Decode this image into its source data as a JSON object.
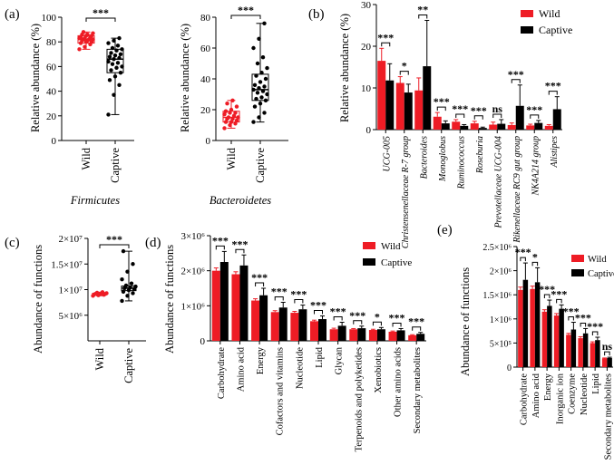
{
  "colors": {
    "wild": "#ee1c25",
    "captive": "#000000",
    "axis": "#000000"
  },
  "chart_data": [
    {
      "panel": "(a)",
      "type": "box",
      "title": "Firmicutes",
      "ylabel": "Relative abundance (%)",
      "categories": [
        "Wild",
        "Captive"
      ],
      "ylim": [
        0,
        100
      ],
      "yticks": [
        "0",
        "20",
        "40",
        "60",
        "80",
        "100"
      ],
      "groups": [
        {
          "name": "Wild",
          "min": 74,
          "q1": 79,
          "median": 82,
          "q3": 85,
          "max": 88,
          "points": [
            74,
            76,
            78,
            79,
            80,
            80,
            81,
            81,
            82,
            82,
            82,
            83,
            83,
            84,
            84,
            85,
            85,
            86,
            86,
            87,
            88
          ]
        },
        {
          "name": "Captive",
          "min": 21,
          "q1": 55,
          "median": 66,
          "q3": 74,
          "max": 83,
          "points": [
            21,
            37,
            45,
            49,
            52,
            55,
            57,
            59,
            60,
            62,
            63,
            64,
            66,
            67,
            68,
            69,
            70,
            71,
            73,
            74,
            75,
            77,
            79,
            81,
            83
          ]
        }
      ],
      "significance": "***"
    },
    {
      "panel": "",
      "type": "box",
      "title": "Bacteroidetes",
      "ylabel": "Relative abundance (%)",
      "categories": [
        "Wild",
        "Captive"
      ],
      "ylim": [
        0,
        80
      ],
      "yticks": [
        "0",
        "20",
        "40",
        "60",
        "80"
      ],
      "groups": [
        {
          "name": "Wild",
          "min": 8,
          "q1": 12,
          "median": 15,
          "q3": 19,
          "max": 26,
          "points": [
            8,
            10,
            11,
            12,
            12,
            13,
            14,
            14,
            15,
            15,
            16,
            17,
            18,
            18,
            19,
            20,
            22,
            24,
            26
          ]
        },
        {
          "name": "Captive",
          "min": 12,
          "q1": 26,
          "median": 33,
          "q3": 43,
          "max": 76,
          "points": [
            12,
            15,
            18,
            22,
            24,
            26,
            27,
            28,
            30,
            31,
            32,
            33,
            34,
            35,
            36,
            38,
            40,
            42,
            44,
            47,
            50,
            54,
            60,
            66,
            76
          ]
        }
      ],
      "significance": "***"
    },
    {
      "panel": "(b)",
      "type": "bar",
      "ylabel": "Relative abundance (%)",
      "ylim": [
        0,
        30
      ],
      "yticks": [
        "0",
        "10",
        "20",
        "30"
      ],
      "legend": [
        "Wild",
        "Captive"
      ],
      "categories": [
        "UCG-005",
        "Christensenellaceae R-7 group",
        "Bacteroides",
        "Monoglobus",
        "Ruminococcus",
        "Roseburia",
        "Prevotellaceae UCG-004",
        "Rikenellaceae RC9 gut group",
        "NK4A214 group",
        "Alistipes"
      ],
      "series": [
        {
          "name": "Wild",
          "values": [
            16.5,
            11.2,
            9.4,
            3.1,
            1.9,
            1.5,
            1.2,
            1.1,
            1.0,
            0.9
          ],
          "errors": [
            3,
            1.5,
            3,
            1,
            0.5,
            0.5,
            0.6,
            0.5,
            0.3,
            0.3
          ]
        },
        {
          "name": "Captive",
          "values": [
            11.8,
            8.9,
            15.2,
            1.5,
            0.9,
            0.4,
            1.4,
            5.7,
            1.6,
            4.9
          ],
          "errors": [
            4,
            2,
            11,
            0.6,
            0.3,
            0.2,
            1,
            5,
            0.6,
            3
          ]
        }
      ],
      "significance": [
        "***",
        "*",
        "**",
        "***",
        "***",
        "***",
        "ns",
        "***",
        "***",
        "***"
      ]
    },
    {
      "panel": "(c)",
      "type": "box",
      "ylabel": "Abundance of functions",
      "categories": [
        "Wild",
        "Captive"
      ],
      "ylim": [
        0,
        20000000
      ],
      "yticks": [
        "5×10⁶",
        "1×10⁷",
        "1.5×10⁷",
        "2×10⁷"
      ],
      "groups": [
        {
          "name": "Wild",
          "min": 8800000,
          "q1": 9000000,
          "median": 9150000,
          "q3": 9300000,
          "max": 9500000,
          "points": [
            8800000,
            8900000,
            9000000,
            9050000,
            9100000,
            9150000,
            9200000,
            9250000,
            9300000,
            9400000,
            9500000
          ]
        },
        {
          "name": "Captive",
          "min": 7800000,
          "q1": 9800000,
          "median": 10300000,
          "q3": 10700000,
          "max": 17500000,
          "points": [
            7800000,
            8800000,
            9300000,
            9600000,
            9900000,
            10100000,
            10300000,
            10400000,
            10600000,
            10800000,
            11200000,
            12000000,
            13500000,
            15000000,
            17500000
          ]
        }
      ],
      "significance": "***"
    },
    {
      "panel": "(d)",
      "type": "bar",
      "ylabel": "Abundance of functions",
      "ylim": [
        0,
        3000000
      ],
      "yticks": [
        "0",
        "1×10⁶",
        "2×10⁶",
        "3×10⁶"
      ],
      "legend": [
        "Wild",
        "Captive"
      ],
      "categories": [
        "Carbohydrate",
        "Amino acid",
        "Energy",
        "Cofactors and vitamins",
        "Nucleotide",
        "Lipid",
        "Glycan",
        "Terpenoids and polyketides",
        "Xenobiotics",
        "Other amino acids",
        "Secondary metabolites"
      ],
      "series": [
        {
          "name": "Wild",
          "values": [
            2000000,
            1900000,
            1150000,
            820000,
            800000,
            560000,
            330000,
            330000,
            310000,
            260000,
            160000
          ],
          "errors": [
            80000,
            70000,
            50000,
            40000,
            40000,
            30000,
            30000,
            20000,
            20000,
            20000,
            15000
          ]
        },
        {
          "name": "Captive",
          "values": [
            2250000,
            2150000,
            1300000,
            950000,
            900000,
            620000,
            430000,
            360000,
            330000,
            300000,
            200000
          ],
          "errors": [
            300000,
            300000,
            200000,
            150000,
            120000,
            90000,
            100000,
            60000,
            50000,
            50000,
            40000
          ]
        }
      ],
      "significance": [
        "***",
        "***",
        "***",
        "***",
        "***",
        "***",
        "***",
        "***",
        "*",
        "***",
        "***"
      ]
    },
    {
      "panel": "(e)",
      "type": "bar",
      "ylabel": "Abundance of functions",
      "ylim": [
        0,
        2500000
      ],
      "yticks": [
        "0",
        "5×10⁵",
        "1×10⁶",
        "1.5×10⁶",
        "2×10⁶",
        "2.5×10⁶"
      ],
      "legend": [
        "Wild",
        "Captive"
      ],
      "categories": [
        "Carbohydrate",
        "Amino acid",
        "Energy",
        "Inorganic ion",
        "Coenzyme",
        "Nucleotide",
        "Lipid",
        "Secondary metabolites"
      ],
      "series": [
        {
          "name": "Wild",
          "values": [
            1600000,
            1620000,
            1150000,
            1070000,
            670000,
            600000,
            500000,
            180000
          ],
          "errors": [
            60000,
            60000,
            40000,
            40000,
            30000,
            30000,
            25000,
            10000
          ]
        },
        {
          "name": "Captive",
          "values": [
            1810000,
            1760000,
            1270000,
            1210000,
            780000,
            700000,
            560000,
            190000
          ],
          "errors": [
            350000,
            300000,
            120000,
            80000,
            150000,
            100000,
            60000,
            15000
          ]
        }
      ],
      "significance": [
        "***",
        "*",
        "***",
        "***",
        "***",
        "***",
        "***",
        "ns"
      ]
    }
  ]
}
